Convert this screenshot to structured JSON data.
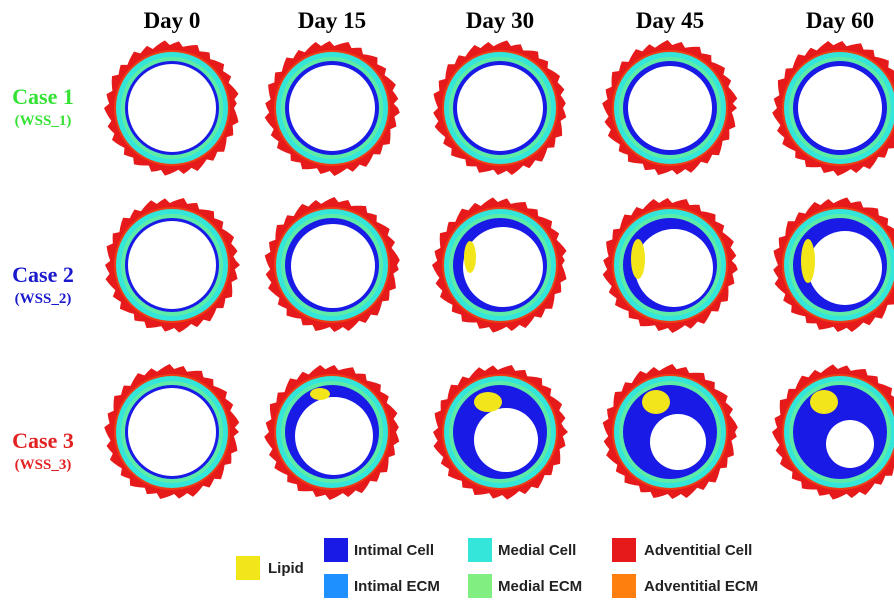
{
  "columns": [
    "Day 0",
    "Day 15",
    "Day 30",
    "Day 45",
    "Day 60"
  ],
  "rows": [
    {
      "title": "Case 1",
      "subtitle": "(WSS_1)",
      "color": "#33e233"
    },
    {
      "title": "Case 2",
      "subtitle": "(WSS_2)",
      "color": "#1a1acc"
    },
    {
      "title": "Case 3",
      "subtitle": "(WSS_3)",
      "color": "#e22222"
    }
  ],
  "legend": {
    "lipid": {
      "label": "Lipid",
      "color": "#f2e61a"
    },
    "intimal_cell": {
      "label": "Intimal Cell",
      "color": "#1a1ae6"
    },
    "intimal_ecm": {
      "label": "Intimal ECM",
      "color": "#1e90ff"
    },
    "medial_cell": {
      "label": "Medial Cell",
      "color": "#33e6d9"
    },
    "medial_ecm": {
      "label": "Medial ECM",
      "color": "#80ee80"
    },
    "adventitial_cell": {
      "label": "Adventitial Cell",
      "color": "#e61a1a"
    },
    "adventitial_ecm": {
      "label": "Adventitial ECM",
      "color": "#ff7f0e"
    }
  }
}
